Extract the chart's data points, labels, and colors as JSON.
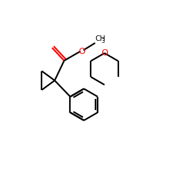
{
  "bg_color": "#ffffff",
  "bond_color": "#000000",
  "oxygen_color": "#ff0000",
  "lw": 1.6,
  "figsize": [
    2.5,
    2.5
  ],
  "dpi": 100,
  "xlim": [
    0.0,
    1.0
  ],
  "ylim": [
    0.0,
    1.0
  ]
}
